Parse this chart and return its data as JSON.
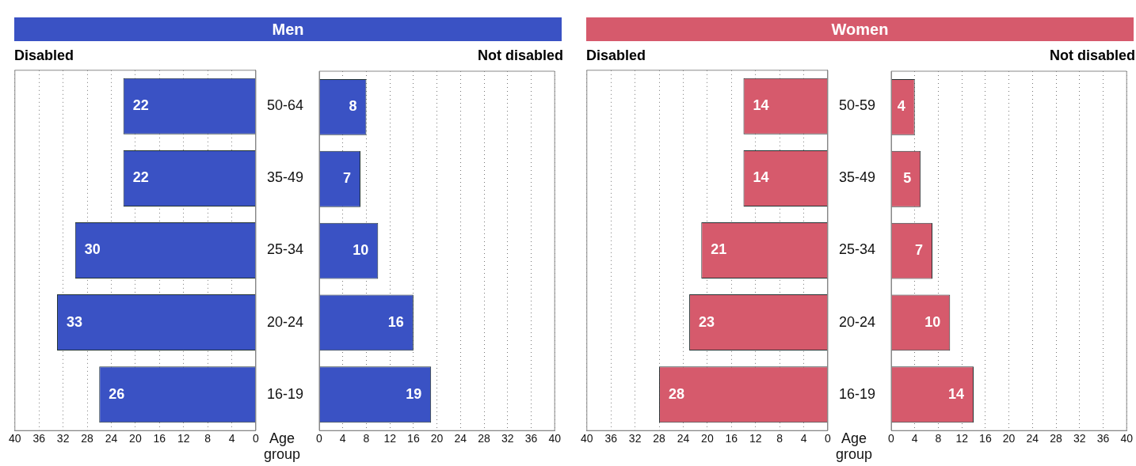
{
  "chart_data": [
    {
      "type": "bar",
      "orientation": "horizontal",
      "title": "Men",
      "subtitle": "Disabled",
      "ylabel": "Age group",
      "categories": [
        "50-64",
        "35-49",
        "25-34",
        "20-24",
        "16-19"
      ],
      "values": [
        22,
        22,
        30,
        33,
        26
      ],
      "color": "#3a52c4",
      "xlim": [
        40,
        0
      ],
      "xticks": [
        40,
        36,
        32,
        28,
        24,
        20,
        16,
        12,
        8,
        4,
        0
      ],
      "grid": "x",
      "data_labels": true,
      "legend": false
    },
    {
      "type": "bar",
      "orientation": "horizontal",
      "subtitle": "Not disabled",
      "categories": [
        null,
        null,
        null,
        null,
        null
      ],
      "values": [
        8,
        7,
        10,
        16,
        19
      ],
      "color": "#3a52c4",
      "xlim": [
        0,
        40
      ],
      "xticks": [
        0,
        4,
        8,
        12,
        16,
        20,
        24,
        28,
        32,
        36,
        40
      ],
      "grid": "x",
      "data_labels": true,
      "legend": false,
      "tick_labels": "x"
    },
    {
      "type": "bar",
      "orientation": "horizontal",
      "title": "Women",
      "subtitle": "Disabled",
      "ylabel": "Age group",
      "categories": [
        "50-59",
        "35-49",
        "25-34",
        "20-24",
        "16-19"
      ],
      "values": [
        14,
        14,
        21,
        23,
        28
      ],
      "color": "#d65a6c",
      "xlim": [
        40,
        0
      ],
      "xticks": [
        40,
        36,
        32,
        28,
        24,
        20,
        16,
        12,
        8,
        4,
        0
      ],
      "grid": "x",
      "data_labels": true,
      "legend": false
    },
    {
      "type": "bar",
      "orientation": "horizontal",
      "subtitle": "Not disabled",
      "categories": [
        null,
        null,
        null,
        null,
        null
      ],
      "values": [
        4,
        5,
        7,
        10,
        14
      ],
      "color": "#d65a6c",
      "xlim": [
        0,
        40
      ],
      "xticks": [
        0,
        4,
        8,
        12,
        16,
        20,
        24,
        28,
        32,
        36,
        40
      ],
      "grid": "x",
      "data_labels": true,
      "legend": false,
      "tick_labels": "x"
    }
  ]
}
